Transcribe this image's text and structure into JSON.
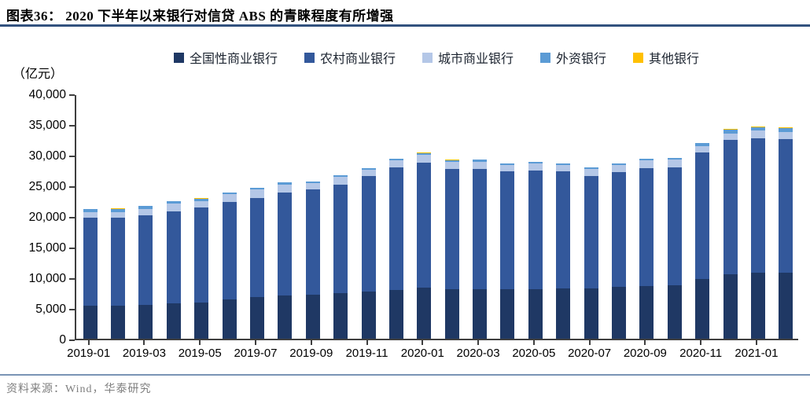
{
  "header": {
    "title": "图表36：  2020 下半年以来银行对信贷 ABS 的青睐程度有所增强"
  },
  "footer": {
    "source": "资料来源：Wind，华泰研究"
  },
  "colors": {
    "title_rule": "#32517e",
    "bottom_rule": "#7a94b5",
    "axis": "#3f3f3f",
    "source_text": "#7f7f7f"
  },
  "chart_data": {
    "type": "bar",
    "stacked": true,
    "unit_label": "（亿元）",
    "grid": false,
    "legend_position": "top",
    "ylim": [
      0,
      40000
    ],
    "y_ticks": [
      "0",
      "5,000",
      "10,000",
      "15,000",
      "20,000",
      "25,000",
      "30,000",
      "35,000",
      "40,000"
    ],
    "categories": [
      "2019-01",
      "2019-02",
      "2019-03",
      "2019-04",
      "2019-05",
      "2019-06",
      "2019-07",
      "2019-08",
      "2019-09",
      "2019-10",
      "2019-11",
      "2019-12",
      "2020-01",
      "2020-02",
      "2020-03",
      "2020-04",
      "2020-05",
      "2020-06",
      "2020-07",
      "2020-08",
      "2020-09",
      "2020-10",
      "2020-11",
      "2020-12",
      "2021-01",
      "2021-02"
    ],
    "x_tick_labels": [
      "2019-01",
      "2019-03",
      "2019-05",
      "2019-07",
      "2019-09",
      "2019-11",
      "2020-01",
      "2020-03",
      "2020-05",
      "2020-07",
      "2020-09",
      "2020-11",
      "2021-01"
    ],
    "series": [
      {
        "name": "全国性商业银行",
        "color": "#1f3864",
        "values": [
          5400,
          5400,
          5500,
          5800,
          5900,
          6350,
          6800,
          7100,
          7200,
          7400,
          7650,
          8000,
          8300,
          8050,
          8050,
          8050,
          8100,
          8150,
          8250,
          8400,
          8600,
          8700,
          9700,
          10500,
          10750,
          10800
        ]
      },
      {
        "name": "农村商业银行",
        "color": "#33589b",
        "values": [
          14300,
          14350,
          14650,
          15000,
          15500,
          16000,
          16100,
          16800,
          17150,
          17700,
          18850,
          20000,
          20400,
          19700,
          19600,
          19200,
          19350,
          19100,
          18350,
          18750,
          19250,
          19300,
          20650,
          21900,
          22000,
          21800
        ]
      },
      {
        "name": "城市商业银行",
        "color": "#b4c7e7",
        "values": [
          950,
          900,
          1050,
          1250,
          1100,
          1200,
          1400,
          1200,
          1050,
          1300,
          1100,
          1100,
          1300,
          1150,
          1250,
          1100,
          1150,
          1150,
          1150,
          1200,
          1200,
          1200,
          1000,
          1050,
          1200,
          1150
        ]
      },
      {
        "name": "外资银行",
        "color": "#5b9bd5",
        "values": [
          500,
          550,
          450,
          400,
          350,
          300,
          350,
          400,
          280,
          300,
          250,
          250,
          300,
          250,
          300,
          250,
          220,
          200,
          200,
          180,
          250,
          300,
          550,
          700,
          600,
          650
        ]
      },
      {
        "name": "其他银行",
        "color": "#ffc000",
        "values": [
          30,
          30,
          50,
          50,
          50,
          50,
          30,
          30,
          30,
          30,
          30,
          30,
          30,
          30,
          50,
          30,
          30,
          30,
          40,
          30,
          50,
          50,
          30,
          30,
          50,
          50
        ]
      }
    ]
  }
}
